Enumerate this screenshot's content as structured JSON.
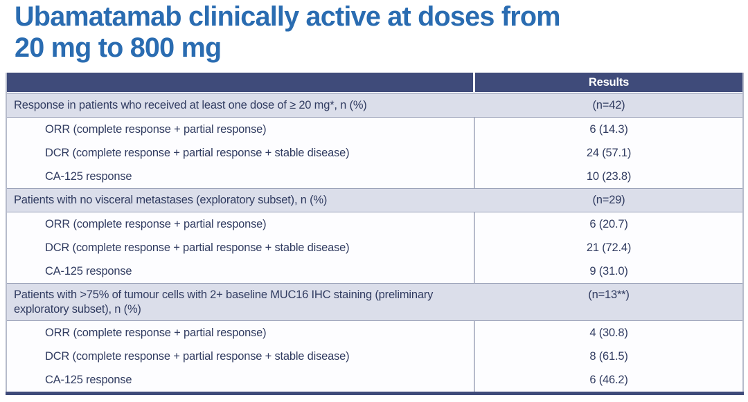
{
  "title": {
    "line1": "Ubamatamab clinically active at doses from",
    "line2": "20 mg to 800 mg"
  },
  "colors": {
    "title_blue": "#2a6cb1",
    "header_navy": "#3f4b7a",
    "section_lavender": "#dbdeea",
    "body_white": "#fdfdff",
    "table_text": "#313c61",
    "border_gray": "#9aa1b8"
  },
  "table": {
    "header": {
      "results_label": "Results"
    },
    "sections": [
      {
        "label": "Response in patients who received at least one dose of ≥ 20 mg*, n (%)",
        "n": "(n=42)",
        "rows": [
          {
            "label": "ORR (complete response + partial response)",
            "value": "6 (14.3)"
          },
          {
            "label": "DCR (complete response + partial response + stable disease)",
            "value": "24 (57.1)"
          },
          {
            "label": "CA-125 response",
            "value": "10 (23.8)"
          }
        ]
      },
      {
        "label": "Patients with no visceral metastases (exploratory subset), n (%)",
        "n": "(n=29)",
        "rows": [
          {
            "label": "ORR (complete response + partial response)",
            "value": "6 (20.7)"
          },
          {
            "label": "DCR (complete response + partial response + stable disease)",
            "value": "21 (72.4)"
          },
          {
            "label": "CA-125 response",
            "value": "9 (31.0)"
          }
        ]
      },
      {
        "label": "Patients with >75% of tumour cells with 2+ baseline MUC16 IHC staining (preliminary exploratory subset), n (%)",
        "n": "(n=13**)",
        "rows": [
          {
            "label": "ORR (complete response + partial response)",
            "value": "4 (30.8)"
          },
          {
            "label": "DCR (complete response + partial response + stable disease)",
            "value": "8 (61.5)"
          },
          {
            "label": "CA-125 response",
            "value": "6 (46.2)"
          }
        ]
      }
    ]
  }
}
